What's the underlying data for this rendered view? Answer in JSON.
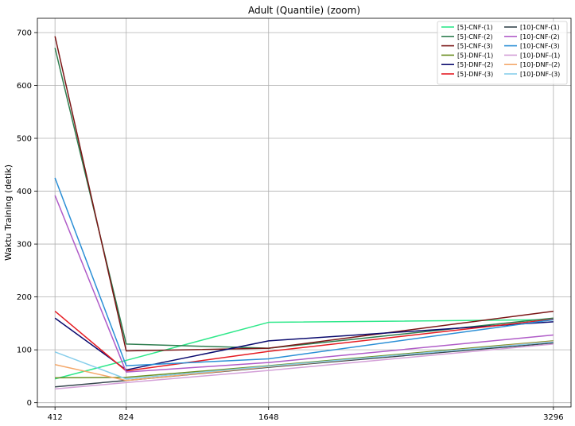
{
  "chart_data": {
    "type": "line",
    "title": "Adult (Quantile) (zoom)",
    "xlabel": "",
    "ylabel": "Waktu Training (detik)",
    "x": [
      412,
      824,
      1648,
      3296
    ],
    "xlim": [
      310,
      3398
    ],
    "ylim": [
      -8,
      727
    ],
    "yticks": [
      0,
      100,
      200,
      300,
      400,
      500,
      600,
      700
    ],
    "grid": true,
    "legend_position": "upper-right",
    "legend_columns": 2,
    "series": [
      {
        "name": "[5]-CNF-(1)",
        "color": "#2ee88a",
        "values": [
          45,
          80,
          152,
          157
        ]
      },
      {
        "name": "[5]-CNF-(2)",
        "color": "#2e7d4f",
        "values": [
          671,
          111,
          103,
          160
        ]
      },
      {
        "name": "[5]-CNF-(3)",
        "color": "#7a1515",
        "values": [
          693,
          98,
          103,
          173
        ]
      },
      {
        "name": "[5]-DNF-(1)",
        "color": "#6b8e23",
        "values": [
          47,
          48,
          70,
          117
        ]
      },
      {
        "name": "[5]-DNF-(2)",
        "color": "#0a0a6e",
        "values": [
          160,
          62,
          117,
          153
        ]
      },
      {
        "name": "[5]-DNF-(3)",
        "color": "#e51c23",
        "values": [
          173,
          60,
          97,
          158
        ]
      },
      {
        "name": "[10]-CNF-(1)",
        "color": "#37474f",
        "values": [
          30,
          42,
          67,
          113
        ]
      },
      {
        "name": "[10]-CNF-(2)",
        "color": "#b05cc8",
        "values": [
          392,
          58,
          76,
          128
        ]
      },
      {
        "name": "[10]-CNF-(3)",
        "color": "#2b8fd6",
        "values": [
          425,
          70,
          83,
          157
        ]
      },
      {
        "name": "[10]-DNF-(1)",
        "color": "#d4a0d8",
        "values": [
          26,
          38,
          61,
          111
        ]
      },
      {
        "name": "[10]-DNF-(2)",
        "color": "#f4a86a",
        "values": [
          72,
          42,
          68,
          116
        ]
      },
      {
        "name": "[10]-DNF-(3)",
        "color": "#87ceeb",
        "values": [
          96,
          45,
          69,
          115
        ]
      }
    ]
  }
}
